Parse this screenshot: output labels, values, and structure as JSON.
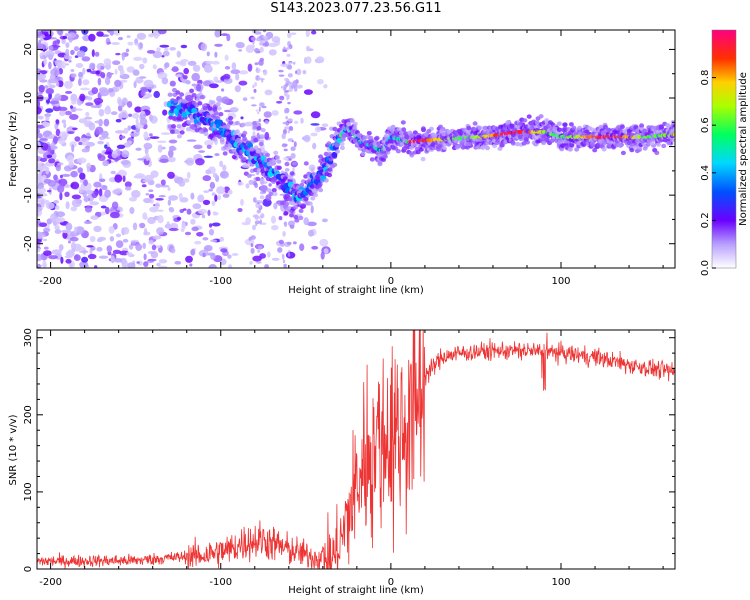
{
  "title": "S143.2023.077.23.56.G11",
  "chart_data": [
    {
      "type": "heatmap",
      "xlabel": "Height of straight line (km)",
      "ylabel": "Frequency (Hz)",
      "xlim": [
        -208,
        167
      ],
      "ylim": [
        -25,
        24
      ],
      "xticks": [
        -200,
        -100,
        0,
        100
      ],
      "yticks": [
        -20,
        -10,
        0,
        10,
        20
      ],
      "ridge": {
        "x": [
          -120,
          -105,
          -95,
          -85,
          -75,
          -65,
          -55,
          -45,
          -38,
          -30,
          -25,
          -18,
          -10,
          -5,
          0,
          10,
          30,
          55,
          75,
          90,
          100,
          120,
          150,
          167
        ],
        "y": [
          8,
          5,
          2,
          -1,
          -3,
          -7,
          -11,
          -7,
          -4,
          2,
          4,
          1,
          0,
          -1,
          2,
          1,
          1.5,
          2,
          3,
          3,
          2,
          2,
          2,
          2.5
        ]
      },
      "colorbar": {
        "label": "Normalized spectral amplitude",
        "range": [
          0,
          1
        ],
        "ticks": [
          0.0,
          0.2,
          0.4,
          0.6,
          0.8
        ],
        "tick_labels": [
          "0.0",
          "0.2",
          "0.4",
          "0.6",
          "0.8"
        ]
      }
    },
    {
      "type": "line",
      "xlabel": "Height of straight line (km)",
      "ylabel": "SNR (10 * v/v)",
      "xlim": [
        -208,
        167
      ],
      "ylim": [
        0,
        310
      ],
      "xticks": [
        -200,
        -100,
        0,
        100
      ],
      "yticks": [
        0,
        100,
        200,
        300
      ],
      "color": "#ee3333",
      "trend": {
        "x": [
          -208,
          -150,
          -110,
          -95,
          -85,
          -75,
          -60,
          -45,
          -35,
          -30,
          -25,
          -20,
          -15,
          -10,
          -5,
          0,
          5,
          10,
          15,
          20,
          30,
          40,
          60,
          80,
          100,
          120,
          140,
          167
        ],
        "y": [
          10,
          11,
          18,
          25,
          35,
          38,
          25,
          15,
          12,
          30,
          70,
          110,
          140,
          160,
          170,
          175,
          180,
          190,
          220,
          250,
          275,
          280,
          283,
          283,
          280,
          275,
          265,
          255
        ]
      }
    }
  ]
}
